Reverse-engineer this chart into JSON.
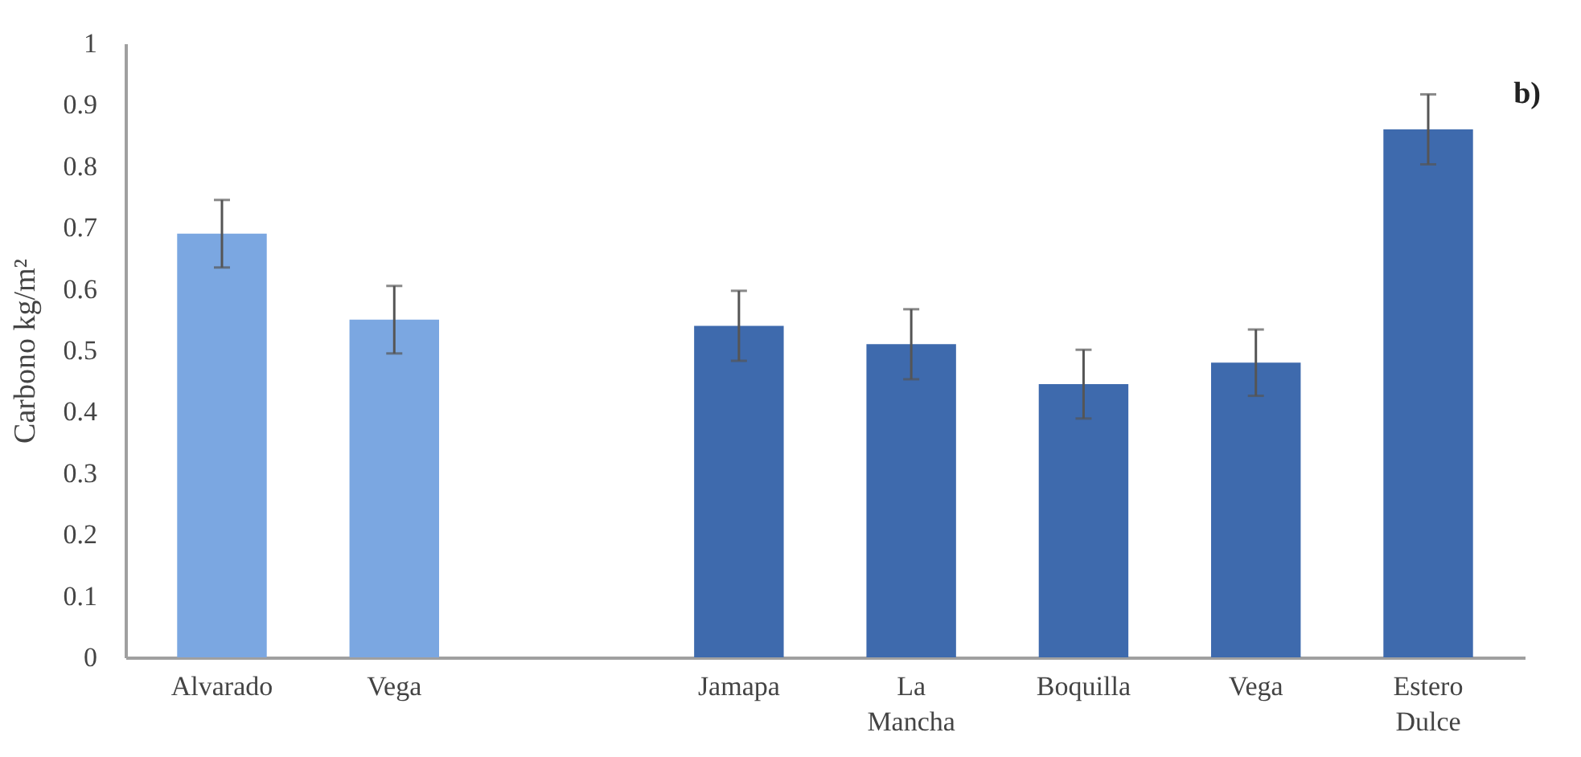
{
  "chart_data": {
    "type": "bar",
    "ylabel": "Carbono kg/m²",
    "categories": [
      "Alvarado",
      "Vega",
      null,
      "Jamapa",
      "La Mancha",
      "Boquilla",
      "Vega",
      "Estero Dulce"
    ],
    "values": [
      0.69,
      0.55,
      null,
      0.54,
      0.51,
      0.445,
      0.48,
      0.86
    ],
    "errors": [
      0.055,
      0.055,
      null,
      0.057,
      0.057,
      0.056,
      0.054,
      0.057
    ],
    "colors": [
      "#7ba7e1",
      "#7ba7e1",
      null,
      "#3e6aad",
      "#3e6aad",
      "#3e6aad",
      "#3e6aad",
      "#3e6aad"
    ],
    "ylim": [
      0,
      1
    ],
    "yticks": [
      0,
      0.1,
      0.2,
      0.3,
      0.4,
      0.5,
      0.6,
      0.7,
      0.8,
      0.9,
      1
    ],
    "annotations": [
      "b)"
    ]
  }
}
